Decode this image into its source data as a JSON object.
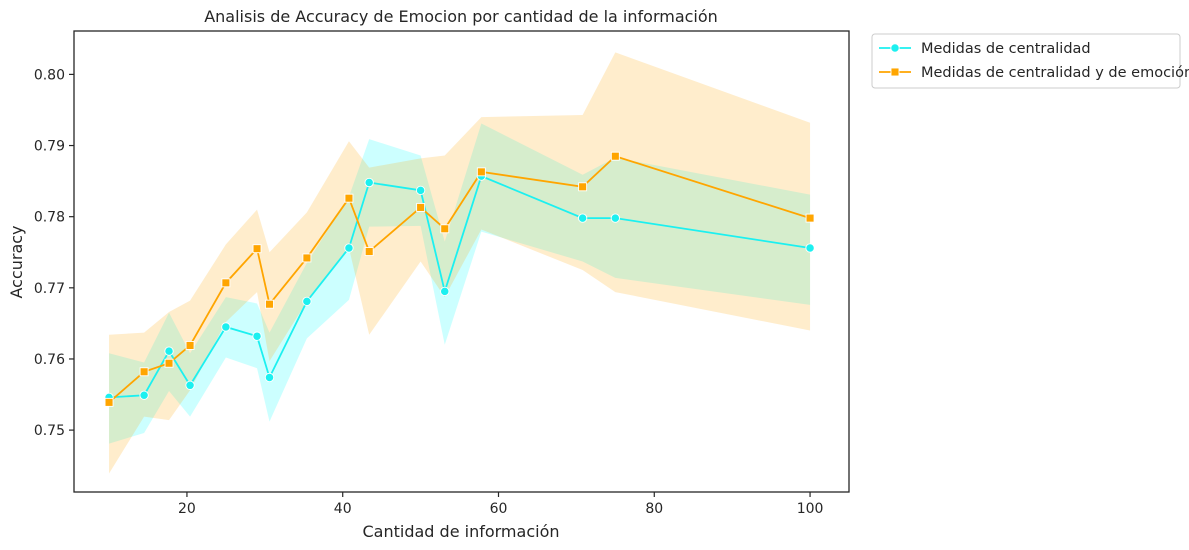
{
  "chart_data": {
    "type": "line",
    "title": "Analisis de Accuracy de Emocion por cantidad de la información",
    "xlabel": "Cantidad de información",
    "ylabel": "Accuracy",
    "xlim": [
      5.5,
      105
    ],
    "ylim": [
      0.7413,
      0.8061
    ],
    "x_ticks": [
      20,
      40,
      60,
      80,
      100
    ],
    "y_ticks": [
      0.75,
      0.76,
      0.77,
      0.78,
      0.79,
      0.8
    ],
    "grid": false,
    "legend_position": "outside-top-right",
    "series": [
      {
        "name": "Medidas de centralidad",
        "color": "#1cf0f0",
        "band_color": "#00ffff",
        "marker": "circle",
        "points": [
          {
            "x": 10,
            "y": 0.7546,
            "lo": 0.7481,
            "hi": 0.7608
          },
          {
            "x": 14.5,
            "y": 0.7549,
            "lo": 0.7496,
            "hi": 0.7595
          },
          {
            "x": 17.7,
            "y": 0.7611,
            "lo": 0.7555,
            "hi": 0.7665
          },
          {
            "x": 20.4,
            "y": 0.7563,
            "lo": 0.7519,
            "hi": 0.7608
          },
          {
            "x": 25,
            "y": 0.7645,
            "lo": 0.7602,
            "hi": 0.7687
          },
          {
            "x": 29,
            "y": 0.7632,
            "lo": 0.7587,
            "hi": 0.7678
          },
          {
            "x": 30.6,
            "y": 0.7574,
            "lo": 0.7512,
            "hi": 0.7637
          },
          {
            "x": 35.4,
            "y": 0.7681,
            "lo": 0.7629,
            "hi": 0.7735
          },
          {
            "x": 40.8,
            "y": 0.7756,
            "lo": 0.7683,
            "hi": 0.7828
          },
          {
            "x": 43.4,
            "y": 0.7848,
            "lo": 0.7786,
            "hi": 0.7909
          },
          {
            "x": 50,
            "y": 0.7837,
            "lo": 0.7787,
            "hi": 0.7886
          },
          {
            "x": 53.1,
            "y": 0.7695,
            "lo": 0.762,
            "hi": 0.7765
          },
          {
            "x": 57.8,
            "y": 0.7857,
            "lo": 0.7779,
            "hi": 0.7931
          },
          {
            "x": 70.8,
            "y": 0.7798,
            "lo": 0.7737,
            "hi": 0.7859
          },
          {
            "x": 75,
            "y": 0.7798,
            "lo": 0.7714,
            "hi": 0.7883
          },
          {
            "x": 100,
            "y": 0.7756,
            "lo": 0.7676,
            "hi": 0.7831
          }
        ]
      },
      {
        "name": "Medidas de centralidad y de emoción",
        "color": "#ffa500",
        "band_color": "#ffa500",
        "marker": "square",
        "points": [
          {
            "x": 10,
            "y": 0.7539,
            "lo": 0.7439,
            "hi": 0.7634
          },
          {
            "x": 14.5,
            "y": 0.7582,
            "lo": 0.7519,
            "hi": 0.7637
          },
          {
            "x": 17.7,
            "y": 0.7594,
            "lo": 0.7514,
            "hi": 0.7666
          },
          {
            "x": 20.4,
            "y": 0.7619,
            "lo": 0.7556,
            "hi": 0.7682
          },
          {
            "x": 25,
            "y": 0.7707,
            "lo": 0.7652,
            "hi": 0.7761
          },
          {
            "x": 29,
            "y": 0.7755,
            "lo": 0.7694,
            "hi": 0.781
          },
          {
            "x": 30.6,
            "y": 0.7677,
            "lo": 0.7597,
            "hi": 0.775
          },
          {
            "x": 35.4,
            "y": 0.7742,
            "lo": 0.7681,
            "hi": 0.7806
          },
          {
            "x": 40.8,
            "y": 0.7826,
            "lo": 0.7756,
            "hi": 0.7906
          },
          {
            "x": 43.4,
            "y": 0.7751,
            "lo": 0.7634,
            "hi": 0.7869
          },
          {
            "x": 50,
            "y": 0.7813,
            "lo": 0.7737,
            "hi": 0.7882
          },
          {
            "x": 53.1,
            "y": 0.7783,
            "lo": 0.7687,
            "hi": 0.7886
          },
          {
            "x": 57.8,
            "y": 0.7863,
            "lo": 0.7782,
            "hi": 0.794
          },
          {
            "x": 70.8,
            "y": 0.7842,
            "lo": 0.7725,
            "hi": 0.7943
          },
          {
            "x": 75,
            "y": 0.7885,
            "lo": 0.7694,
            "hi": 0.8031
          },
          {
            "x": 100,
            "y": 0.7798,
            "lo": 0.764,
            "hi": 0.7932
          }
        ]
      }
    ]
  }
}
